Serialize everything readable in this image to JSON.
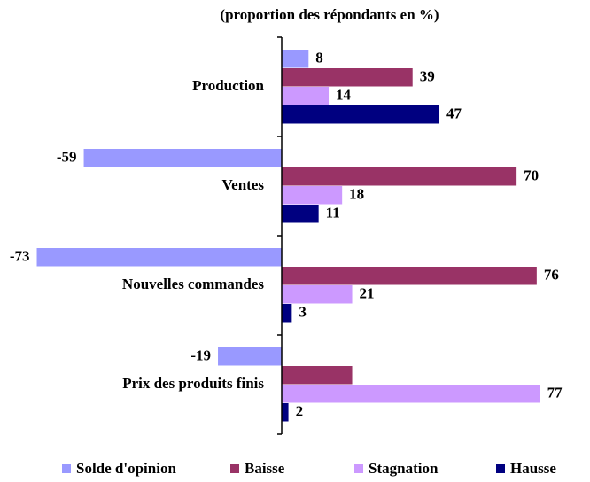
{
  "chart_data": {
    "type": "barh",
    "title": "(proportion des répondants en %)",
    "categories": [
      "Production",
      "Ventes",
      "Nouvelles commandes",
      "Prix des produits finis"
    ],
    "series": [
      {
        "name": "Solde d'opinion",
        "color": "#9999ff",
        "values": [
          8,
          -59,
          -73,
          -19
        ]
      },
      {
        "name": "Baisse",
        "color": "#993366",
        "values": [
          39,
          70,
          76,
          21
        ],
        "value_labels": [
          "39",
          "70",
          "76",
          null
        ]
      },
      {
        "name": "Stagnation",
        "color": "#cc99ff",
        "values": [
          14,
          18,
          21,
          77
        ]
      },
      {
        "name": "Hausse",
        "color": "#000080",
        "values": [
          47,
          11,
          3,
          2
        ]
      }
    ],
    "xlim": [
      -80,
      80
    ],
    "legend": "bottom"
  }
}
